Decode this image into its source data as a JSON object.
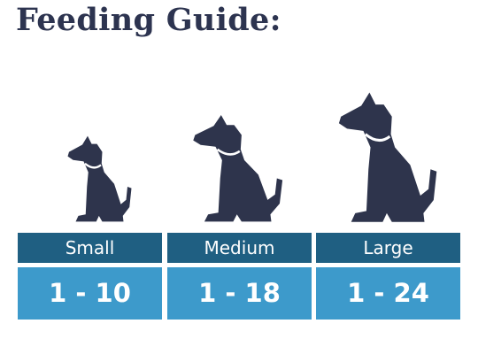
{
  "title": "Feeding Guide:",
  "sizes": [
    {
      "label": "Small",
      "value": "1 - 10"
    },
    {
      "label": "Medium",
      "value": "1 - 18"
    },
    {
      "label": "Large",
      "value": "1 - 24"
    }
  ]
}
